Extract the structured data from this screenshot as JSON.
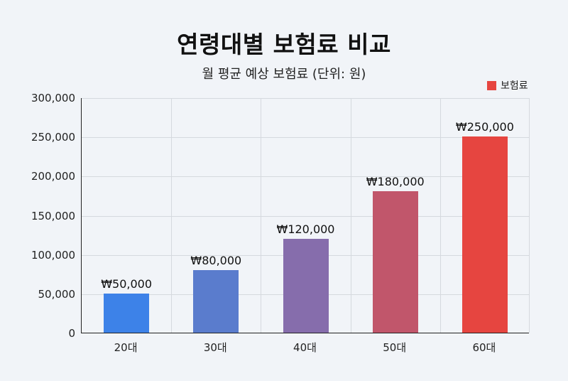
{
  "title": "연령대별 보험료 비교",
  "subtitle": "월 평균 예상 보험료 (단위: 원)",
  "legend": {
    "label": "보험료",
    "color": "#e64540"
  },
  "y_ticks": [
    "0",
    "50,000",
    "100,000",
    "150,000",
    "200,000",
    "250,000",
    "300,000"
  ],
  "categories": [
    "20대",
    "30대",
    "40대",
    "50대",
    "60대"
  ],
  "bar_labels": [
    "₩50,000",
    "₩80,000",
    "₩120,000",
    "₩180,000",
    "₩250,000"
  ],
  "bar_colors": [
    "#3d82e8",
    "#5a7ccd",
    "#866dac",
    "#c1566b",
    "#e64540"
  ],
  "chart_data": {
    "type": "bar",
    "title": "연령대별 보험료 비교",
    "subtitle": "월 평균 예상 보험료 (단위: 원)",
    "categories": [
      "20대",
      "30대",
      "40대",
      "50대",
      "60대"
    ],
    "series": [
      {
        "name": "보험료",
        "values": [
          50000,
          80000,
          120000,
          180000,
          250000
        ]
      }
    ],
    "data_labels": [
      "₩50,000",
      "₩80,000",
      "₩120,000",
      "₩180,000",
      "₩250,000"
    ],
    "xlabel": "",
    "ylabel": "",
    "ylim": [
      0,
      300000
    ],
    "y_tick_step": 50000,
    "grid": true,
    "legend_position": "top-right"
  }
}
